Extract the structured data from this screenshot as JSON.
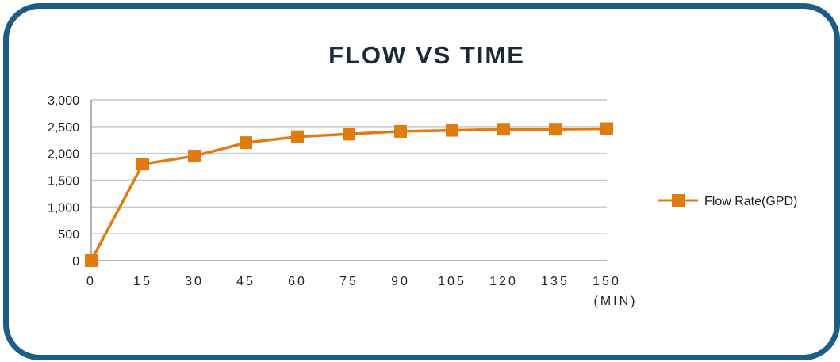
{
  "colors": {
    "frame": "#1a5e86",
    "series": "#e07b10",
    "grid": "#c8c8c8",
    "axis": "#9a9a9a",
    "text": "#1f1f1f"
  },
  "chart_data": {
    "type": "line",
    "title": "FLOW VS TIME",
    "xlabel": "",
    "x_unit": "(MIN)",
    "ylabel": "",
    "x": [
      0,
      15,
      30,
      45,
      60,
      75,
      90,
      105,
      120,
      135,
      150
    ],
    "x_tick_labels": [
      "0",
      "15",
      "30",
      "45",
      "60",
      "75",
      "90",
      "105",
      "120",
      "135",
      "150"
    ],
    "ylim": [
      0,
      3000
    ],
    "y_ticks": [
      0,
      500,
      1000,
      1500,
      2000,
      2500,
      3000
    ],
    "y_tick_labels": [
      "0",
      "500",
      "1,000",
      "1,500",
      "2,000",
      "2,500",
      "3,000"
    ],
    "grid": true,
    "legend_position": "right",
    "series": [
      {
        "name": "Flow Rate(GPD)",
        "marker": "square",
        "values": [
          0,
          1800,
          1950,
          2200,
          2310,
          2360,
          2410,
          2430,
          2450,
          2450,
          2460
        ]
      }
    ]
  }
}
